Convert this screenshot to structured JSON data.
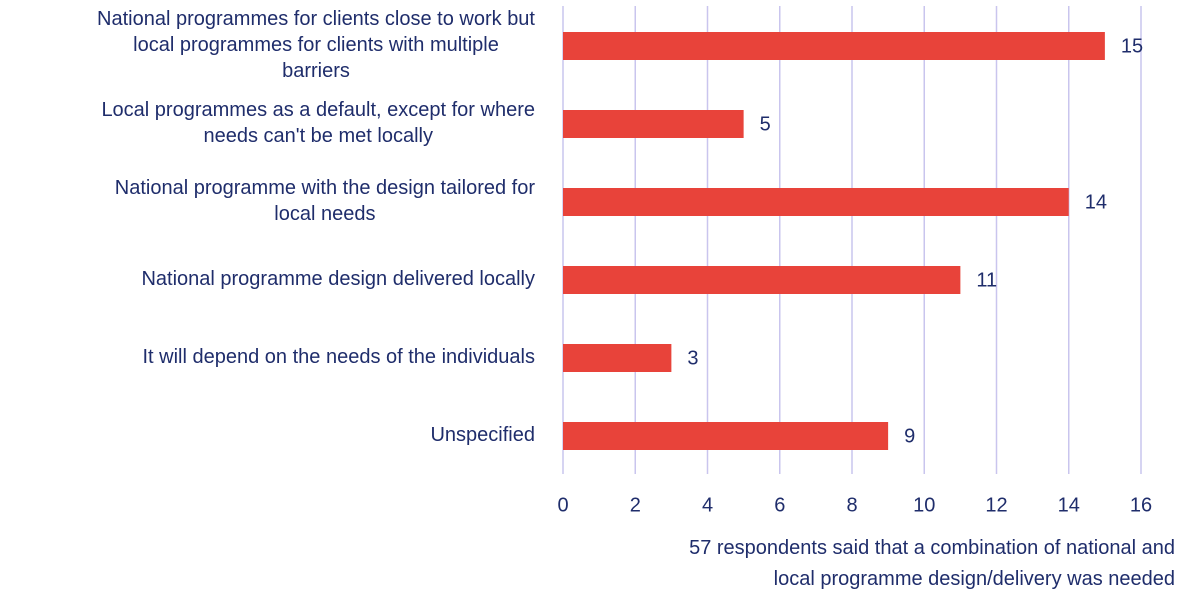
{
  "chart_data": {
    "type": "bar",
    "orientation": "horizontal",
    "categories": [
      "National programmes for clients close to work but local programmes for clients with multiple barriers",
      "Local programmes as a default, except for where needs can't be met locally",
      "National programme with the design tailored for local needs",
      "National programme design delivered locally",
      "It will depend on the needs of the individuals",
      "Unspecified"
    ],
    "values": [
      15,
      5,
      14,
      11,
      3,
      9
    ],
    "color": "#e8433a",
    "xlabel": "57 respondents said that a combination of national and local programme design/delivery was needed",
    "xlim": [
      0,
      16
    ],
    "xticks": [
      0,
      2,
      4,
      6,
      8,
      10,
      12,
      14,
      16
    ],
    "grid": true
  }
}
